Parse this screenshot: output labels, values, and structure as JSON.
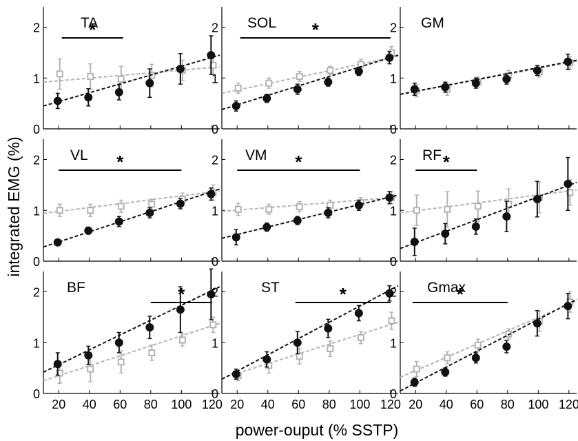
{
  "figure": {
    "ylabel": "integrated EMG (%)",
    "xlabel": "power-ouput (% SSTP)",
    "significance_symbol": "*",
    "x_ticks": [
      20,
      40,
      60,
      80,
      100,
      120
    ],
    "y_ticks": [
      0,
      1,
      2
    ],
    "xlim": [
      10,
      125
    ],
    "ylim": [
      0,
      2.4
    ],
    "colors": {
      "dark": "#111111",
      "light": "#b3b3b3"
    },
    "series_markers": {
      "dark": "filled-circle",
      "light": "open-square"
    }
  },
  "chart_data": [
    {
      "type": "scatter",
      "title": "TA",
      "x": [
        20,
        40,
        60,
        80,
        100,
        120
      ],
      "series": [
        {
          "marker": "filled-circle",
          "color": "#111111",
          "values": [
            0.55,
            0.62,
            0.72,
            0.9,
            1.18,
            1.45
          ],
          "errors": [
            0.15,
            0.17,
            0.15,
            0.28,
            0.3,
            0.38
          ],
          "fit": [
            0.45,
            1.45
          ]
        },
        {
          "marker": "open-square",
          "color": "#b3b3b3",
          "values": [
            1.08,
            1.03,
            0.98,
            1.05,
            1.15,
            1.25
          ],
          "errors": [
            0.3,
            0.25,
            0.25,
            0.22,
            0.2,
            0.18
          ],
          "fit": [
            0.92,
            1.22
          ]
        }
      ],
      "significance": {
        "x1": 22,
        "x2": 62
      }
    },
    {
      "type": "scatter",
      "title": "SOL",
      "x": [
        20,
        40,
        60,
        80,
        100,
        120
      ],
      "series": [
        {
          "marker": "filled-circle",
          "color": "#111111",
          "values": [
            0.45,
            0.6,
            0.78,
            0.92,
            1.13,
            1.4
          ],
          "errors": [
            0.1,
            0.08,
            0.1,
            0.08,
            0.08,
            0.12
          ],
          "fit": [
            0.38,
            1.45
          ]
        },
        {
          "marker": "open-square",
          "color": "#b3b3b3",
          "values": [
            0.8,
            0.9,
            1.03,
            1.15,
            1.27,
            1.5
          ],
          "errors": [
            0.1,
            0.1,
            0.1,
            0.08,
            0.1,
            0.12
          ],
          "fit": [
            0.7,
            1.43
          ]
        }
      ],
      "significance": {
        "x1": 22,
        "x2": 120
      }
    },
    {
      "type": "scatter",
      "title": "GM",
      "x": [
        20,
        40,
        60,
        80,
        100,
        120
      ],
      "series": [
        {
          "marker": "filled-circle",
          "color": "#111111",
          "values": [
            0.78,
            0.82,
            0.9,
            0.98,
            1.15,
            1.32
          ],
          "errors": [
            0.12,
            0.1,
            0.1,
            0.1,
            0.1,
            0.15
          ],
          "fit": [
            0.68,
            1.35
          ]
        },
        {
          "marker": "open-square",
          "color": "#b3b3b3",
          "values": [
            0.75,
            0.78,
            0.92,
            1.05,
            1.12,
            1.3
          ],
          "errors": [
            0.12,
            0.12,
            0.1,
            0.1,
            0.1,
            0.12
          ],
          "fit": [
            0.68,
            1.33
          ]
        }
      ],
      "significance": null
    },
    {
      "type": "scatter",
      "title": "VL",
      "x": [
        20,
        40,
        60,
        80,
        100,
        120
      ],
      "series": [
        {
          "marker": "filled-circle",
          "color": "#111111",
          "values": [
            0.37,
            0.6,
            0.78,
            0.95,
            1.13,
            1.32
          ],
          "errors": [
            0.05,
            0.07,
            0.1,
            0.1,
            0.1,
            0.12
          ],
          "fit": [
            0.28,
            1.42
          ]
        },
        {
          "marker": "open-square",
          "color": "#b3b3b3",
          "values": [
            1.0,
            1.0,
            1.08,
            1.12,
            1.22,
            1.35
          ],
          "errors": [
            0.12,
            0.12,
            0.12,
            0.1,
            0.12,
            0.15
          ],
          "fit": [
            0.94,
            1.38
          ]
        }
      ],
      "significance": {
        "x1": 20,
        "x2": 100
      }
    },
    {
      "type": "scatter",
      "title": "VM",
      "x": [
        20,
        40,
        60,
        80,
        100,
        120
      ],
      "series": [
        {
          "marker": "filled-circle",
          "color": "#111111",
          "values": [
            0.47,
            0.67,
            0.8,
            0.95,
            1.1,
            1.25
          ],
          "errors": [
            0.15,
            0.08,
            0.08,
            0.1,
            0.1,
            0.12
          ],
          "fit": [
            0.45,
            1.3
          ]
        },
        {
          "marker": "open-square",
          "color": "#b3b3b3",
          "values": [
            1.02,
            1.02,
            1.07,
            1.1,
            1.15,
            1.25
          ],
          "errors": [
            0.12,
            0.1,
            0.1,
            0.1,
            0.1,
            0.12
          ],
          "fit": [
            0.98,
            1.26
          ]
        }
      ],
      "significance": {
        "x1": 20,
        "x2": 100
      }
    },
    {
      "type": "scatter",
      "title": "RF",
      "x": [
        20,
        40,
        60,
        80,
        100,
        120
      ],
      "series": [
        {
          "marker": "filled-circle",
          "color": "#111111",
          "values": [
            0.38,
            0.54,
            0.68,
            0.88,
            1.22,
            1.52
          ],
          "errors": [
            0.27,
            0.2,
            0.15,
            0.3,
            0.35,
            0.52
          ],
          "fit": [
            0.25,
            1.55
          ]
        },
        {
          "marker": "open-square",
          "color": "#b3b3b3",
          "values": [
            1.0,
            1.02,
            1.08,
            1.12,
            1.25,
            1.35
          ],
          "errors": [
            0.3,
            0.35,
            0.3,
            0.3,
            0.3,
            0.25
          ],
          "fit": [
            0.95,
            1.4
          ]
        }
      ],
      "significance": {
        "x1": 20,
        "x2": 60
      }
    },
    {
      "type": "scatter",
      "title": "BF",
      "x": [
        20,
        40,
        60,
        80,
        100,
        120
      ],
      "series": [
        {
          "marker": "filled-circle",
          "color": "#111111",
          "values": [
            0.58,
            0.75,
            1.0,
            1.3,
            1.65,
            1.95
          ],
          "errors": [
            0.22,
            0.18,
            0.2,
            0.22,
            0.45,
            0.5
          ],
          "fit": [
            0.42,
            2.1
          ]
        },
        {
          "marker": "open-square",
          "color": "#b3b3b3",
          "values": [
            0.4,
            0.48,
            0.62,
            0.8,
            1.05,
            1.35
          ],
          "errors": [
            0.2,
            0.25,
            0.22,
            0.15,
            0.12,
            0.15
          ],
          "fit": [
            0.25,
            1.38
          ]
        }
      ],
      "significance": {
        "x1": 80,
        "x2": 120
      }
    },
    {
      "type": "scatter",
      "title": "ST",
      "x": [
        20,
        40,
        60,
        80,
        100,
        120
      ],
      "series": [
        {
          "marker": "filled-circle",
          "color": "#111111",
          "values": [
            0.38,
            0.67,
            1.0,
            1.28,
            1.58,
            1.97
          ],
          "errors": [
            0.1,
            0.15,
            0.22,
            0.18,
            0.15,
            0.15
          ],
          "fit": [
            0.28,
            2.12
          ]
        },
        {
          "marker": "open-square",
          "color": "#b3b3b3",
          "values": [
            0.35,
            0.55,
            0.73,
            0.88,
            1.1,
            1.43
          ],
          "errors": [
            0.1,
            0.15,
            0.15,
            0.15,
            0.12,
            0.17
          ],
          "fit": [
            0.3,
            1.4
          ]
        }
      ],
      "significance": {
        "x1": 58,
        "x2": 120
      }
    },
    {
      "type": "scatter",
      "title": "Gmax",
      "x": [
        20,
        40,
        60,
        80,
        100,
        120
      ],
      "series": [
        {
          "marker": "filled-circle",
          "color": "#111111",
          "values": [
            0.22,
            0.42,
            0.7,
            0.92,
            1.38,
            1.72
          ],
          "errors": [
            0.08,
            0.08,
            0.1,
            0.12,
            0.25,
            0.25
          ],
          "fit": [
            0.05,
            1.85
          ]
        },
        {
          "marker": "open-square",
          "color": "#b3b3b3",
          "values": [
            0.48,
            0.7,
            0.95,
            1.17,
            1.42,
            1.8
          ],
          "errors": [
            0.15,
            0.12,
            0.12,
            0.1,
            0.2,
            0.2
          ],
          "fit": [
            0.32,
            1.82
          ]
        }
      ],
      "significance": {
        "x1": 18,
        "x2": 80
      }
    }
  ]
}
